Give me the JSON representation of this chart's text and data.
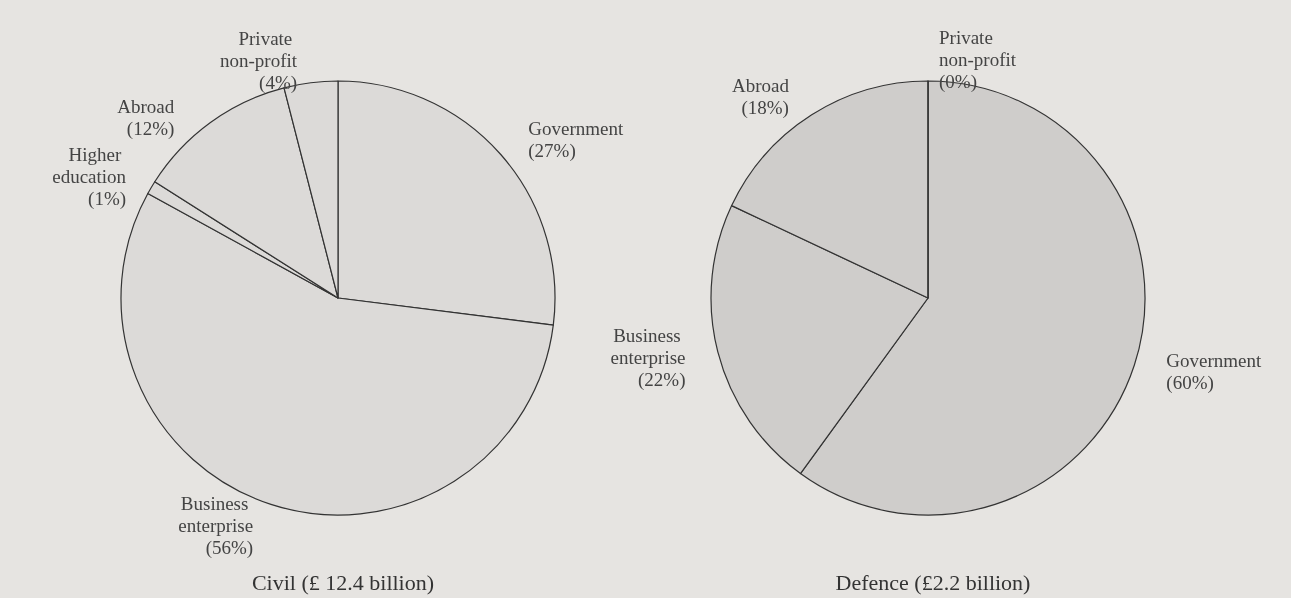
{
  "chart_data": [
    {
      "type": "pie",
      "title": "Civil (£ 12.4 billion)",
      "categories": [
        "Government",
        "Business enterprise",
        "Higher education",
        "Abroad",
        "Private non-profit"
      ],
      "values": [
        27,
        56,
        1,
        12,
        4
      ],
      "value_labels": [
        "(27%)",
        "(56%)",
        "(1%)",
        "(12%)",
        "(4%)"
      ],
      "colors": [
        "#dcdad8",
        "#dcdad8",
        "#dcdad8",
        "#dcdad8",
        "#dcdad8"
      ]
    },
    {
      "type": "pie",
      "title": "Defence (£2.2 billion)",
      "categories": [
        "Government",
        "Business enterprise",
        "Abroad",
        "Private non-profit"
      ],
      "values": [
        60,
        22,
        18,
        0
      ],
      "value_labels": [
        "(60%)",
        "(22%)",
        "(18%)",
        "(0%)"
      ],
      "colors": [
        "#cfcdcb",
        "#cfcdcb",
        "#cfcdcb",
        "#cfcdcb"
      ]
    }
  ]
}
